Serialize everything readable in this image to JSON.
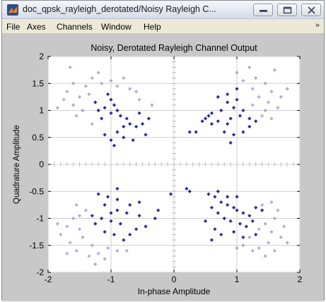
{
  "window": {
    "title": "doc_qpsk_rayleigh_derotated/Noisy Rayleigh C...",
    "minimize_glyph": "minimize-icon",
    "maximize_glyph": "maximize-icon",
    "close_glyph": "close-icon"
  },
  "menu": {
    "items": [
      "File",
      "Axes",
      "Channels",
      "Window",
      "Help"
    ],
    "overflow": "»"
  },
  "colors": {
    "marker_dark": "#1f1f9a",
    "marker_light": "#8a8ad2",
    "grid": "#cfcfcf",
    "figure_bg": "#c8c8c8"
  },
  "chart_data": {
    "type": "scatter",
    "title": "Noisy, Derotated Rayleigh Channel Output",
    "xlabel": "In-phase Amplitude",
    "ylabel": "Quadrature Amplitude",
    "xlim": [
      -2,
      2
    ],
    "ylim": [
      -2,
      2
    ],
    "xticks": [
      -2,
      -1,
      0,
      1,
      2
    ],
    "yticks": [
      -2,
      -1.5,
      -1,
      -0.5,
      0,
      0.5,
      1,
      1.5,
      2
    ],
    "xtick_labels": [
      "-2",
      "-1",
      "0",
      "1",
      "2"
    ],
    "ytick_labels": [
      "-2",
      "-1.5",
      "-1",
      "-0.5",
      "0",
      "0.5",
      "1",
      "1.5",
      "2"
    ],
    "grid": true,
    "series": [
      {
        "style": "dark",
        "points": [
          [
            -1.05,
            1.3
          ],
          [
            -1.0,
            1.2
          ],
          [
            -0.95,
            1.1
          ],
          [
            -1.1,
            1.05
          ],
          [
            -1.2,
            1.0
          ],
          [
            -0.9,
            1.0
          ],
          [
            -1.0,
            0.95
          ],
          [
            -0.85,
            0.9
          ],
          [
            -0.75,
            0.85
          ],
          [
            -1.15,
            0.85
          ],
          [
            -0.7,
            0.75
          ],
          [
            -0.6,
            0.7
          ],
          [
            -0.5,
            0.75
          ],
          [
            -0.9,
            0.6
          ],
          [
            -1.1,
            0.55
          ],
          [
            -0.8,
            0.5
          ],
          [
            -0.65,
            0.45
          ],
          [
            -1.0,
            0.45
          ],
          [
            -0.95,
            0.35
          ],
          [
            -0.4,
            0.85
          ],
          [
            -0.45,
            0.55
          ],
          [
            -1.25,
            1.15
          ],
          [
            -0.55,
            0.95
          ],
          [
            -0.8,
            0.7
          ],
          [
            0.7,
            1.25
          ],
          [
            0.85,
            1.15
          ],
          [
            1.0,
            1.2
          ],
          [
            0.95,
            1.05
          ],
          [
            1.1,
            1.0
          ],
          [
            0.75,
            1.0
          ],
          [
            0.6,
            0.95
          ],
          [
            0.55,
            0.9
          ],
          [
            0.5,
            0.85
          ],
          [
            0.45,
            0.8
          ],
          [
            0.6,
            0.75
          ],
          [
            0.7,
            0.8
          ],
          [
            0.85,
            0.75
          ],
          [
            0.9,
            0.85
          ],
          [
            1.05,
            0.9
          ],
          [
            1.2,
            0.85
          ],
          [
            1.3,
            0.8
          ],
          [
            1.2,
            0.7
          ],
          [
            1.1,
            0.6
          ],
          [
            0.95,
            0.55
          ],
          [
            0.9,
            0.4
          ],
          [
            0.8,
            0.6
          ],
          [
            0.25,
            0.6
          ],
          [
            0.35,
            0.6
          ],
          [
            1.0,
            1.4
          ],
          [
            0.85,
            1.3
          ],
          [
            -1.2,
            -0.55
          ],
          [
            -1.05,
            -0.6
          ],
          [
            -0.9,
            -0.65
          ],
          [
            -0.7,
            -0.75
          ],
          [
            -1.1,
            -0.75
          ],
          [
            -0.9,
            -0.85
          ],
          [
            -0.75,
            -0.9
          ],
          [
            -0.55,
            -0.95
          ],
          [
            -1.3,
            -0.95
          ],
          [
            -1.15,
            -1.0
          ],
          [
            -1.0,
            -1.05
          ],
          [
            -1.25,
            -1.1
          ],
          [
            -0.85,
            -1.1
          ],
          [
            -0.6,
            -1.2
          ],
          [
            -0.45,
            -1.15
          ],
          [
            -1.1,
            -1.25
          ],
          [
            -0.95,
            -1.3
          ],
          [
            -0.7,
            -1.3
          ],
          [
            -0.9,
            -0.45
          ],
          [
            -0.3,
            -1.0
          ],
          [
            -0.25,
            -0.85
          ],
          [
            -1.0,
            -0.9
          ],
          [
            -0.8,
            -1.4
          ],
          [
            -0.55,
            -0.7
          ],
          [
            0.55,
            -0.55
          ],
          [
            0.65,
            -0.6
          ],
          [
            0.75,
            -0.7
          ],
          [
            0.85,
            -0.75
          ],
          [
            0.95,
            -0.8
          ],
          [
            1.0,
            -0.85
          ],
          [
            1.1,
            -0.9
          ],
          [
            1.2,
            -0.95
          ],
          [
            1.3,
            -0.8
          ],
          [
            1.4,
            -0.85
          ],
          [
            0.6,
            -0.8
          ],
          [
            0.7,
            -0.9
          ],
          [
            0.8,
            -1.0
          ],
          [
            0.9,
            -1.05
          ],
          [
            1.05,
            -1.1
          ],
          [
            1.15,
            -1.15
          ],
          [
            1.25,
            -1.05
          ],
          [
            0.65,
            -1.2
          ],
          [
            0.75,
            -1.3
          ],
          [
            0.95,
            -1.25
          ],
          [
            1.3,
            -1.3
          ],
          [
            0.5,
            -1.05
          ],
          [
            0.85,
            -0.6
          ],
          [
            1.0,
            -0.6
          ],
          [
            0.7,
            -0.5
          ],
          [
            0.25,
            -0.5
          ],
          [
            0.2,
            -0.45
          ],
          [
            -0.05,
            -0.55
          ],
          [
            1.1,
            -1.35
          ],
          [
            0.6,
            -1.4
          ]
        ]
      },
      {
        "style": "light",
        "points": [
          [
            -1.6,
            1.5
          ],
          [
            -1.7,
            1.35
          ],
          [
            -1.5,
            1.25
          ],
          [
            -1.75,
            1.2
          ],
          [
            -1.6,
            1.1
          ],
          [
            -1.4,
            1.45
          ],
          [
            -1.3,
            1.6
          ],
          [
            -1.2,
            1.7
          ],
          [
            -1.65,
            1.8
          ],
          [
            -0.8,
            1.6
          ],
          [
            -0.7,
            1.4
          ],
          [
            -0.55,
            1.2
          ],
          [
            -1.45,
            1.0
          ],
          [
            -1.55,
            0.9
          ],
          [
            -1.3,
            0.75
          ],
          [
            -0.35,
            1.1
          ],
          [
            -1.15,
            1.5
          ],
          [
            -1.0,
            1.55
          ],
          [
            -0.9,
            1.45
          ],
          [
            -1.85,
            1.05
          ],
          [
            -0.6,
            1.35
          ],
          [
            -1.35,
            1.3
          ],
          [
            1.3,
            1.6
          ],
          [
            1.45,
            1.5
          ],
          [
            1.55,
            1.35
          ],
          [
            1.7,
            1.25
          ],
          [
            1.5,
            1.15
          ],
          [
            1.35,
            1.25
          ],
          [
            1.25,
            1.4
          ],
          [
            1.6,
            1.75
          ],
          [
            1.2,
            1.8
          ],
          [
            1.1,
            1.55
          ],
          [
            1.45,
            1.0
          ],
          [
            1.65,
            1.05
          ],
          [
            1.4,
            0.9
          ],
          [
            1.25,
            1.1
          ],
          [
            1.8,
            1.4
          ],
          [
            1.0,
            1.7
          ],
          [
            1.55,
            0.85
          ],
          [
            -1.8,
            -1.3
          ],
          [
            -1.7,
            -1.15
          ],
          [
            -1.6,
            -1.0
          ],
          [
            -1.65,
            -1.45
          ],
          [
            -1.5,
            -1.2
          ],
          [
            -1.45,
            -1.35
          ],
          [
            -1.55,
            -1.6
          ],
          [
            -1.3,
            -1.5
          ],
          [
            -1.2,
            -1.65
          ],
          [
            -1.05,
            -1.55
          ],
          [
            -1.1,
            -1.75
          ],
          [
            -0.9,
            -1.6
          ],
          [
            -1.4,
            -0.85
          ],
          [
            -1.55,
            -0.75
          ],
          [
            -1.35,
            -1.7
          ],
          [
            -0.75,
            -1.6
          ],
          [
            -1.85,
            -1.1
          ],
          [
            -1.25,
            -1.85
          ],
          [
            -1.7,
            -1.65
          ],
          [
            -1.5,
            -0.95
          ],
          [
            1.2,
            -1.35
          ],
          [
            1.35,
            -1.2
          ],
          [
            1.45,
            -1.1
          ],
          [
            1.55,
            -1.25
          ],
          [
            1.6,
            -1.0
          ],
          [
            1.7,
            -1.35
          ],
          [
            1.5,
            -1.45
          ],
          [
            1.35,
            -1.55
          ],
          [
            1.25,
            -1.6
          ],
          [
            1.6,
            -1.6
          ],
          [
            1.75,
            -1.15
          ],
          [
            1.4,
            -0.75
          ],
          [
            1.55,
            -0.7
          ],
          [
            1.1,
            -1.5
          ],
          [
            1.8,
            -1.45
          ],
          [
            1.0,
            -1.55
          ],
          [
            1.65,
            -0.85
          ],
          [
            1.45,
            -1.7
          ]
        ]
      }
    ]
  }
}
